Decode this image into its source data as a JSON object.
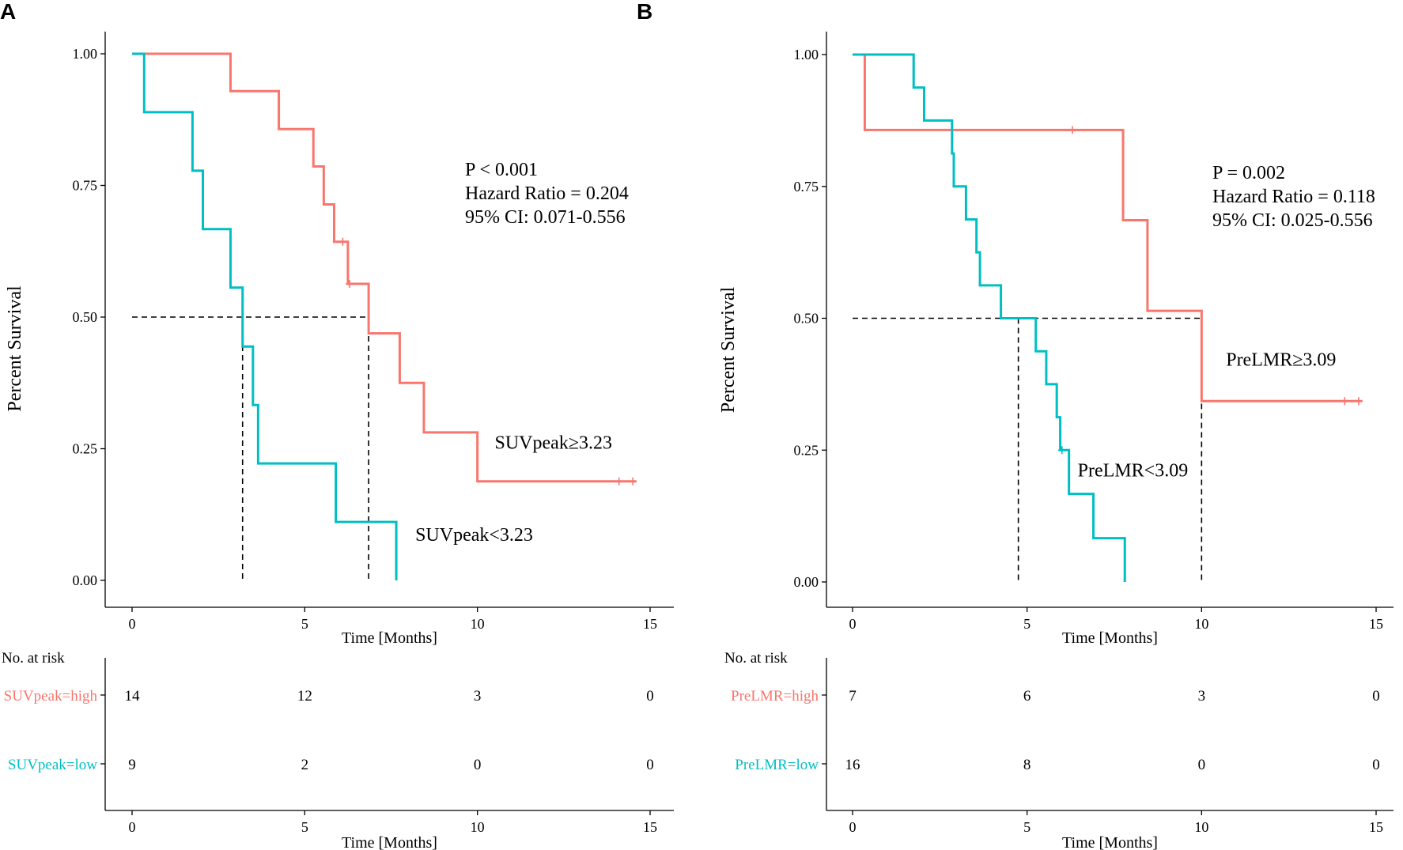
{
  "colors": {
    "high": "#F8766D",
    "low": "#00BFC4",
    "axis": "#000000"
  },
  "chart_data": [
    {
      "panel": "A",
      "type": "line",
      "ylabel": "Percent Survival",
      "xlabel": "Time [Months]",
      "xlim": [
        0,
        15
      ],
      "ylim": [
        0,
        1
      ],
      "xticks": [
        0,
        5,
        10,
        15
      ],
      "yticks": [
        "0.00",
        "0.25",
        "0.50",
        "0.75",
        "1.00"
      ],
      "annotation": [
        "P < 0.001",
        "Hazard Ratio = 0.204",
        "95% CI: 0.071-0.556"
      ],
      "series": [
        {
          "name": "SUVpeak≥3.23",
          "group": "high",
          "steps": [
            [
              0,
              1
            ],
            [
              2.85,
              0.929
            ],
            [
              4.25,
              0.857
            ],
            [
              5.25,
              0.786
            ],
            [
              5.55,
              0.714
            ],
            [
              5.85,
              0.643
            ],
            [
              6.25,
              0.563
            ],
            [
              6.85,
              0.469
            ],
            [
              7.75,
              0.375
            ],
            [
              8.45,
              0.281
            ],
            [
              10.0,
              0.188
            ]
          ],
          "end": 14.6,
          "censor": [
            [
              6.1,
              0.643
            ],
            [
              6.3,
              0.563
            ],
            [
              14.1,
              0.188
            ],
            [
              14.5,
              0.188
            ]
          ],
          "median": 6.85,
          "label_pos": [
            10.5,
            0.25
          ]
        },
        {
          "name": "SUVpeak<3.23",
          "group": "low",
          "steps": [
            [
              0,
              1
            ],
            [
              0.35,
              0.889
            ],
            [
              1.75,
              0.778
            ],
            [
              2.05,
              0.667
            ],
            [
              2.85,
              0.556
            ],
            [
              3.2,
              0.444
            ],
            [
              3.5,
              0.333
            ],
            [
              3.65,
              0.222
            ],
            [
              5.9,
              0.111
            ],
            [
              7.65,
              0.0
            ]
          ],
          "end": 7.65,
          "censor": [],
          "median": 3.2,
          "label_pos": [
            8.2,
            0.075
          ]
        }
      ],
      "risk_table": {
        "title": "No. at risk",
        "xlabel": "Time [Months]",
        "xticks": [
          0,
          5,
          10,
          15
        ],
        "rows": [
          {
            "label": "SUVpeak=high",
            "group": "high",
            "values": [
              14,
              12,
              3,
              0
            ]
          },
          {
            "label": "SUVpeak=low",
            "group": "low",
            "values": [
              9,
              2,
              0,
              0
            ]
          }
        ]
      }
    },
    {
      "panel": "B",
      "type": "line",
      "ylabel": "Percent Survival",
      "xlabel": "Time [Months]",
      "xlim": [
        0,
        15
      ],
      "ylim": [
        0,
        1
      ],
      "xticks": [
        0,
        5,
        10,
        15
      ],
      "yticks": [
        "0.00",
        "0.25",
        "0.50",
        "0.75",
        "1.00"
      ],
      "annotation": [
        "P = 0.002",
        "Hazard Ratio = 0.118",
        "95% CI: 0.025-0.556"
      ],
      "series": [
        {
          "name": "PreLMR≥3.09",
          "group": "high",
          "steps": [
            [
              0,
              1
            ],
            [
              0.35,
              0.857
            ],
            [
              7.75,
              0.686
            ],
            [
              8.45,
              0.514
            ],
            [
              10.0,
              0.343
            ]
          ],
          "end": 14.6,
          "censor": [
            [
              6.3,
              0.857
            ],
            [
              14.1,
              0.343
            ],
            [
              14.5,
              0.343
            ]
          ],
          "median": 10.0,
          "label_pos": [
            10.7,
            0.41
          ]
        },
        {
          "name": "PreLMR<3.09",
          "group": "low",
          "steps": [
            [
              0,
              1
            ],
            [
              1.75,
              0.9375
            ],
            [
              2.05,
              0.875
            ],
            [
              2.85,
              0.8125
            ],
            [
              2.9,
              0.75
            ],
            [
              3.25,
              0.6875
            ],
            [
              3.55,
              0.625
            ],
            [
              3.65,
              0.5625
            ],
            [
              4.25,
              0.5
            ],
            [
              5.25,
              0.4375
            ],
            [
              5.55,
              0.375
            ],
            [
              5.85,
              0.3125
            ],
            [
              5.95,
              0.25
            ],
            [
              6.2,
              0.167
            ],
            [
              6.9,
              0.083
            ],
            [
              7.8,
              0.0
            ]
          ],
          "end": 7.8,
          "censor": [
            [
              6.0,
              0.25
            ]
          ],
          "median": 4.75,
          "label_pos": [
            6.45,
            0.2
          ]
        }
      ],
      "risk_table": {
        "title": "No. at risk",
        "xlabel": "Time [Months]",
        "xticks": [
          0,
          5,
          10,
          15
        ],
        "rows": [
          {
            "label": "PreLMR=high",
            "group": "high",
            "values": [
              7,
              6,
              3,
              0
            ]
          },
          {
            "label": "PreLMR=low",
            "group": "low",
            "values": [
              16,
              8,
              0,
              0
            ]
          }
        ]
      }
    }
  ]
}
